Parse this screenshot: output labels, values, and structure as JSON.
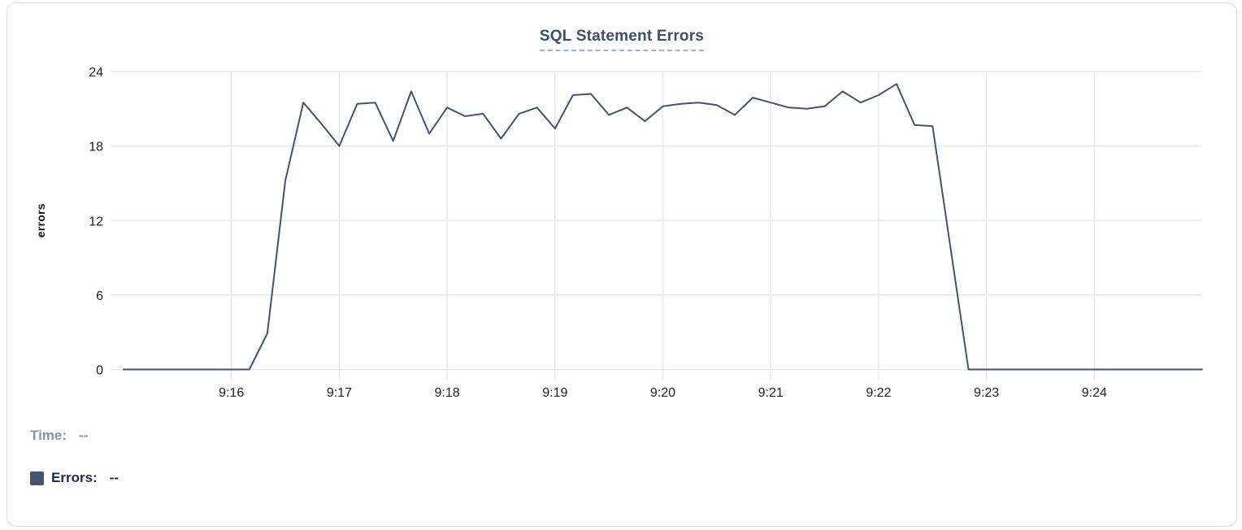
{
  "chart_data": {
    "type": "line",
    "title": "SQL Statement Errors",
    "ylabel": "errors",
    "ylim": [
      0,
      24
    ],
    "y_ticks": [
      0,
      6,
      12,
      18,
      24
    ],
    "x_tick_labels": [
      "9:16",
      "9:17",
      "9:18",
      "9:19",
      "9:20",
      "9:21",
      "9:22",
      "9:23",
      "9:24"
    ],
    "x_start": "9:15:00",
    "x_end": "9:25:00",
    "x_step_seconds": 10,
    "x_range_seconds": 600,
    "grid": true,
    "legend_position": "none",
    "series": [
      {
        "name": "Errors",
        "color": "#44536e",
        "values": [
          0,
          0,
          0,
          0,
          0,
          0,
          0,
          0,
          2.9,
          15.2,
          21.5,
          19.8,
          18,
          21.4,
          21.5,
          18.4,
          22.4,
          19,
          21.1,
          20.4,
          20.6,
          18.6,
          20.6,
          21.1,
          19.4,
          22.1,
          22.2,
          20.5,
          21.1,
          20,
          21.2,
          21.4,
          21.5,
          21.3,
          20.5,
          21.9,
          21.5,
          21.1,
          21,
          21.2,
          22.4,
          21.5,
          22.1,
          23,
          19.7,
          19.6,
          9.8,
          0,
          0,
          0,
          0,
          0,
          0,
          0,
          0,
          0,
          0,
          0,
          0,
          0,
          0
        ]
      }
    ]
  },
  "tooltip": {
    "time_label": "Time:",
    "time_value": "--",
    "errors_label": "Errors:",
    "errors_value": "--"
  },
  "colors": {
    "series_line": "#44536e",
    "swatch": "#44536e",
    "title_text": "#3d4e6f",
    "title_underline": "#a6b0c3",
    "grid": "#e8e8e8",
    "tick_text": "#1e1e1e",
    "time_label_text": "#8d939b",
    "errors_label_text": "#1b2a52",
    "card_border": "#d9dce1",
    "background": "#ffffff"
  }
}
